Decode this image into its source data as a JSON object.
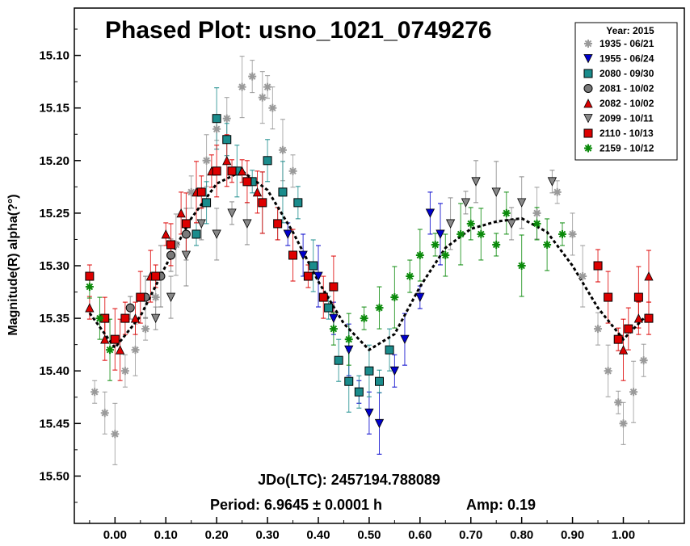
{
  "chart_data": {
    "type": "scatter",
    "title": "Phased Plot: usno_1021_0749276",
    "xlabel": "",
    "ylabel": "Magnitude(R) alpha(?°)",
    "xlim": [
      -0.08,
      1.12
    ],
    "ylim": [
      15.545,
      15.055
    ],
    "y_inverted": true,
    "xticks": [
      "0.00",
      "0.10",
      "0.20",
      "0.30",
      "0.40",
      "0.50",
      "0.60",
      "0.70",
      "0.80",
      "0.90",
      "1.00"
    ],
    "yticks": [
      "15.10",
      "15.15",
      "15.20",
      "15.25",
      "15.30",
      "15.35",
      "15.40",
      "15.45",
      "15.50"
    ],
    "legend_title": "Year: 2015",
    "legend_position": "top-right",
    "annotations": {
      "epoch": "JDo(LTC): 2457194.788089",
      "period": "Period: 6.9645 ± 0.0001 h",
      "amp": "Amp: 0.19"
    },
    "fit_curve": {
      "x": [
        -0.05,
        0.0,
        0.05,
        0.1,
        0.15,
        0.2,
        0.25,
        0.3,
        0.35,
        0.4,
        0.45,
        0.5,
        0.55,
        0.6,
        0.65,
        0.7,
        0.75,
        0.8,
        0.85,
        0.9,
        0.95,
        1.0,
        1.05
      ],
      "y": [
        15.345,
        15.378,
        15.348,
        15.3,
        15.255,
        15.222,
        15.21,
        15.228,
        15.268,
        15.315,
        15.355,
        15.38,
        15.365,
        15.32,
        15.283,
        15.265,
        15.258,
        15.255,
        15.268,
        15.3,
        15.34,
        15.37,
        15.345
      ]
    },
    "series": [
      {
        "name": "1935 - 06/21",
        "marker": "asterisk",
        "color": "#9a9a9a",
        "x": [
          -0.04,
          -0.02,
          0.0,
          0.02,
          0.04,
          0.06,
          0.08,
          0.12,
          0.15,
          0.18,
          0.2,
          0.22,
          0.25,
          0.27,
          0.29,
          0.3,
          0.31,
          0.33,
          0.35,
          0.83,
          0.87,
          0.9,
          0.92,
          0.95,
          0.97,
          0.99,
          1.0,
          1.02,
          1.04
        ],
        "y": [
          15.42,
          15.44,
          15.46,
          15.4,
          15.38,
          15.36,
          15.33,
          15.28,
          15.23,
          15.2,
          15.17,
          15.16,
          15.13,
          15.12,
          15.14,
          15.13,
          15.15,
          15.19,
          15.21,
          15.25,
          15.23,
          15.27,
          15.31,
          15.36,
          15.4,
          15.43,
          15.45,
          15.42,
          15.39
        ]
      },
      {
        "name": "1955 - 06/24",
        "marker": "triangle-down",
        "color": "#0000cc",
        "x": [
          0.34,
          0.37,
          0.4,
          0.43,
          0.46,
          0.48,
          0.5,
          0.52,
          0.55,
          0.57,
          0.6,
          0.62,
          0.64
        ],
        "y": [
          15.27,
          15.29,
          15.31,
          15.35,
          15.38,
          15.42,
          15.44,
          15.45,
          15.4,
          15.37,
          15.33,
          15.25,
          15.27
        ]
      },
      {
        "name": "2080 - 09/30",
        "marker": "square",
        "color": "#1a8c8c",
        "x": [
          0.16,
          0.18,
          0.2,
          0.22,
          0.24,
          0.27,
          0.3,
          0.33,
          0.36,
          0.39,
          0.42,
          0.44,
          0.46,
          0.48,
          0.5,
          0.52,
          0.54
        ],
        "y": [
          15.27,
          15.24,
          15.16,
          15.18,
          15.21,
          15.22,
          15.2,
          15.23,
          15.24,
          15.3,
          15.34,
          15.39,
          15.41,
          15.42,
          15.4,
          15.41,
          15.38
        ]
      },
      {
        "name": "2081 - 10/02",
        "marker": "circle",
        "color": "#7a7a7a",
        "x": [
          0.03,
          0.06,
          0.09,
          0.11,
          0.14
        ],
        "y": [
          15.34,
          15.33,
          15.31,
          15.29,
          15.27
        ]
      },
      {
        "name": "2082 - 10/02",
        "marker": "triangle-up",
        "color": "#dd0000",
        "x": [
          -0.05,
          -0.02,
          0.01,
          0.04,
          0.07,
          0.1,
          0.13,
          0.16,
          0.19,
          0.22,
          0.25,
          0.28,
          1.0,
          1.03,
          1.05
        ],
        "y": [
          15.34,
          15.37,
          15.38,
          15.35,
          15.31,
          15.27,
          15.25,
          15.23,
          15.21,
          15.2,
          15.21,
          15.23,
          15.38,
          15.35,
          15.31
        ]
      },
      {
        "name": "2099 - 10/11",
        "marker": "triangle-down",
        "color": "#888888",
        "x": [
          0.08,
          0.11,
          0.14,
          0.17,
          0.2,
          0.23,
          0.26,
          0.29,
          0.32,
          0.66,
          0.69,
          0.71,
          0.75,
          0.78,
          0.8,
          0.86
        ],
        "y": [
          15.35,
          15.33,
          15.29,
          15.26,
          15.27,
          15.25,
          15.26,
          15.24,
          15.26,
          15.26,
          15.24,
          15.22,
          15.23,
          15.26,
          15.24,
          15.22
        ]
      },
      {
        "name": "2110 - 10/13",
        "marker": "square",
        "color": "#dd0000",
        "x": [
          -0.05,
          -0.02,
          0.0,
          0.02,
          0.05,
          0.08,
          0.11,
          0.14,
          0.17,
          0.2,
          0.23,
          0.26,
          0.29,
          0.32,
          0.35,
          0.38,
          0.41,
          0.43,
          0.95,
          0.97,
          0.99,
          1.01,
          1.03,
          1.05
        ],
        "y": [
          15.31,
          15.35,
          15.37,
          15.35,
          15.33,
          15.31,
          15.28,
          15.26,
          15.23,
          15.21,
          15.21,
          15.22,
          15.24,
          15.26,
          15.29,
          15.31,
          15.33,
          15.32,
          15.3,
          15.33,
          15.37,
          15.36,
          15.33,
          15.35
        ]
      },
      {
        "name": "2159 - 10/12",
        "marker": "asterisk",
        "color": "#0a8a0a",
        "x": [
          -0.05,
          -0.03,
          -0.01,
          0.43,
          0.46,
          0.49,
          0.52,
          0.55,
          0.58,
          0.6,
          0.63,
          0.65,
          0.68,
          0.7,
          0.72,
          0.75,
          0.77,
          0.8,
          0.83,
          0.85,
          0.88
        ],
        "y": [
          15.32,
          15.35,
          15.38,
          15.36,
          15.37,
          15.35,
          15.34,
          15.33,
          15.31,
          15.29,
          15.28,
          15.29,
          15.27,
          15.26,
          15.27,
          15.28,
          15.25,
          15.3,
          15.26,
          15.28,
          15.27
        ]
      }
    ]
  }
}
